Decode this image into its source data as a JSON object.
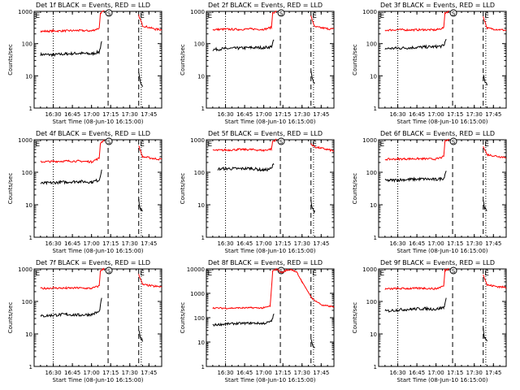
{
  "figure": {
    "ylabel": "Counts/sec",
    "xlabel": "Start Time (08-Jun-10 16:15:00)",
    "x_tick_labels": [
      "16:30",
      "16:45",
      "17:00",
      "17:15",
      "17:30",
      "17:45"
    ],
    "markers": {
      "eclipse_start": "E",
      "saa": "S"
    },
    "colors": {
      "events": "#000000",
      "lld": "#ff0000"
    }
  },
  "chart_data": [
    {
      "type": "line",
      "title": "Det 1f BLACK = Events, RED = LLD",
      "xlabel": "Start Time (08-Jun-10 16:15:00)",
      "ylabel": "Counts/sec",
      "yscale": "log",
      "xlim": [
        "16:15",
        "17:55"
      ],
      "ylim": [
        1,
        1000
      ],
      "y_tick_labels": [
        "1",
        "10",
        "100",
        "1000"
      ],
      "vlines": {
        "dotted": [
          "16:30",
          "17:39"
        ],
        "dashed": [
          "17:13",
          "17:37"
        ]
      },
      "series": [
        {
          "name": "BLACK = Events",
          "color": "#000000",
          "x": [
            "16:20",
            "16:30",
            "16:40",
            "16:50",
            "17:00",
            "17:06",
            "17:08",
            "17:37",
            "17:38",
            "17:40"
          ],
          "y": [
            46,
            45,
            48,
            50,
            48,
            55,
            110,
            12,
            7,
            5
          ]
        },
        {
          "name": "RED = LLD",
          "color": "#ff0000",
          "x": [
            "16:20",
            "16:30",
            "16:40",
            "16:50",
            "17:00",
            "17:06",
            "17:07",
            "17:10",
            "17:37",
            "17:40",
            "17:50",
            "17:55"
          ],
          "y": [
            240,
            245,
            250,
            255,
            248,
            300,
            900,
            1000,
            750,
            360,
            280,
            270
          ]
        }
      ]
    },
    {
      "type": "line",
      "title": "Det 2f BLACK = Events, RED = LLD",
      "xlabel": "Start Time (08-Jun-10 16:15:00)",
      "ylabel": "Counts/sec",
      "yscale": "log",
      "xlim": [
        "16:15",
        "17:55"
      ],
      "ylim": [
        1,
        1000
      ],
      "y_tick_labels": [
        "1",
        "10",
        "100",
        "1000"
      ],
      "vlines": {
        "dotted": [
          "16:30",
          "17:39"
        ],
        "dashed": [
          "17:13",
          "17:37"
        ]
      },
      "series": [
        {
          "name": "BLACK = Events",
          "color": "#000000",
          "x": [
            "16:20",
            "16:30",
            "16:40",
            "16:50",
            "17:00",
            "17:06",
            "17:08",
            "17:37",
            "17:38",
            "17:40"
          ],
          "y": [
            65,
            70,
            72,
            75,
            75,
            80,
            130,
            14,
            8,
            6
          ]
        },
        {
          "name": "RED = LLD",
          "color": "#ff0000",
          "x": [
            "16:20",
            "16:30",
            "16:40",
            "16:50",
            "17:00",
            "17:06",
            "17:07",
            "17:10",
            "17:37",
            "17:40",
            "17:50",
            "17:55"
          ],
          "y": [
            270,
            280,
            275,
            285,
            275,
            320,
            900,
            1000,
            700,
            330,
            290,
            280
          ]
        }
      ]
    },
    {
      "type": "line",
      "title": "Det 3f BLACK = Events, RED = LLD",
      "xlabel": "Start Time (08-Jun-10 16:15:00)",
      "ylabel": "Counts/sec",
      "yscale": "log",
      "xlim": [
        "16:15",
        "17:55"
      ],
      "ylim": [
        1,
        1000
      ],
      "y_tick_labels": [
        "1",
        "10",
        "100",
        "1000"
      ],
      "vlines": {
        "dotted": [
          "16:30",
          "17:39"
        ],
        "dashed": [
          "17:13",
          "17:37"
        ]
      },
      "series": [
        {
          "name": "BLACK = Events",
          "color": "#000000",
          "x": [
            "16:20",
            "16:30",
            "16:40",
            "16:50",
            "17:00",
            "17:06",
            "17:08",
            "17:37",
            "17:38",
            "17:40"
          ],
          "y": [
            70,
            72,
            75,
            78,
            80,
            85,
            140,
            12,
            7,
            5
          ]
        },
        {
          "name": "RED = LLD",
          "color": "#ff0000",
          "x": [
            "16:20",
            "16:30",
            "16:40",
            "16:50",
            "17:00",
            "17:06",
            "17:07",
            "17:10",
            "17:37",
            "17:40",
            "17:50",
            "17:55"
          ],
          "y": [
            260,
            270,
            265,
            270,
            265,
            310,
            900,
            1000,
            700,
            300,
            270,
            260
          ]
        }
      ]
    },
    {
      "type": "line",
      "title": "Det 4f BLACK = Events, RED = LLD",
      "xlabel": "Start Time (08-Jun-10 16:15:00)",
      "ylabel": "Counts/sec",
      "yscale": "log",
      "xlim": [
        "16:15",
        "17:55"
      ],
      "ylim": [
        1,
        1000
      ],
      "y_tick_labels": [
        "1",
        "10",
        "100",
        "1000"
      ],
      "vlines": {
        "dotted": [
          "16:30",
          "17:39"
        ],
        "dashed": [
          "17:13",
          "17:37"
        ]
      },
      "series": [
        {
          "name": "BLACK = Events",
          "color": "#000000",
          "x": [
            "16:20",
            "16:30",
            "16:40",
            "16:50",
            "17:00",
            "17:06",
            "17:08",
            "17:37",
            "17:38",
            "17:40"
          ],
          "y": [
            45,
            48,
            50,
            52,
            50,
            58,
            120,
            14,
            8,
            6
          ]
        },
        {
          "name": "RED = LLD",
          "color": "#ff0000",
          "x": [
            "16:20",
            "16:30",
            "16:40",
            "16:50",
            "17:00",
            "17:06",
            "17:07",
            "17:10",
            "17:37",
            "17:40",
            "17:50",
            "17:55"
          ],
          "y": [
            210,
            215,
            220,
            220,
            210,
            270,
            800,
            1000,
            650,
            300,
            260,
            250
          ]
        }
      ]
    },
    {
      "type": "line",
      "title": "Det 5f BLACK = Events, RED = LLD",
      "xlabel": "Start Time (08-Jun-10 16:15:00)",
      "ylabel": "Counts/sec",
      "yscale": "log",
      "xlim": [
        "16:15",
        "17:55"
      ],
      "ylim": [
        1,
        1000
      ],
      "y_tick_labels": [
        "1",
        "10",
        "100",
        "1000"
      ],
      "vlines": {
        "dotted": [
          "16:30",
          "17:39"
        ],
        "dashed": [
          "17:13",
          "17:37"
        ]
      },
      "series": [
        {
          "name": "BLACK = Events",
          "color": "#000000",
          "x": [
            "16:24",
            "16:30",
            "16:40",
            "16:50",
            "17:00",
            "17:06",
            "17:08",
            "17:37",
            "17:38",
            "17:40"
          ],
          "y": [
            125,
            130,
            128,
            132,
            115,
            130,
            190,
            14,
            8,
            6
          ]
        },
        {
          "name": "RED = LLD",
          "color": "#ff0000",
          "x": [
            "16:20",
            "16:30",
            "16:40",
            "16:50",
            "17:00",
            "17:06",
            "17:07",
            "17:10",
            "17:37",
            "17:40",
            "17:50",
            "17:55"
          ],
          "y": [
            470,
            480,
            500,
            500,
            470,
            520,
            900,
            1000,
            750,
            600,
            500,
            450
          ]
        }
      ]
    },
    {
      "type": "line",
      "title": "Det 6f BLACK = Events, RED = LLD",
      "xlabel": "Start Time (08-Jun-10 16:15:00)",
      "ylabel": "Counts/sec",
      "yscale": "log",
      "xlim": [
        "16:15",
        "17:55"
      ],
      "ylim": [
        1,
        1000
      ],
      "y_tick_labels": [
        "1",
        "10",
        "100",
        "1000"
      ],
      "vlines": {
        "dotted": [
          "16:30",
          "17:39"
        ],
        "dashed": [
          "17:13",
          "17:37"
        ]
      },
      "series": [
        {
          "name": "BLACK = Events",
          "color": "#000000",
          "x": [
            "16:20",
            "16:30",
            "16:40",
            "16:50",
            "17:00",
            "17:06",
            "17:08",
            "17:37",
            "17:38",
            "17:40"
          ],
          "y": [
            55,
            58,
            60,
            62,
            60,
            65,
            115,
            14,
            8,
            6
          ]
        },
        {
          "name": "RED = LLD",
          "color": "#ff0000",
          "x": [
            "16:20",
            "16:30",
            "16:40",
            "16:50",
            "17:00",
            "17:06",
            "17:07",
            "17:10",
            "17:37",
            "17:40",
            "17:50",
            "17:55"
          ],
          "y": [
            250,
            255,
            260,
            260,
            255,
            300,
            900,
            1000,
            650,
            350,
            300,
            290
          ]
        }
      ]
    },
    {
      "type": "line",
      "title": "Det 7f BLACK = Events, RED = LLD",
      "xlabel": "Start Time (08-Jun-10 16:15:00)",
      "ylabel": "Counts/sec",
      "yscale": "log",
      "xlim": [
        "16:15",
        "17:55"
      ],
      "ylim": [
        1,
        1000
      ],
      "y_tick_labels": [
        "1",
        "10",
        "100",
        "1000"
      ],
      "vlines": {
        "dotted": [
          "16:30",
          "17:39"
        ],
        "dashed": [
          "17:13",
          "17:37"
        ]
      },
      "series": [
        {
          "name": "BLACK = Events",
          "color": "#000000",
          "x": [
            "16:20",
            "16:30",
            "16:40",
            "16:50",
            "17:00",
            "17:06",
            "17:08",
            "17:37",
            "17:38",
            "17:40"
          ],
          "y": [
            35,
            38,
            40,
            38,
            40,
            48,
            120,
            14,
            8,
            6
          ]
        },
        {
          "name": "RED = LLD",
          "color": "#ff0000",
          "x": [
            "16:20",
            "16:30",
            "16:40",
            "16:50",
            "17:00",
            "17:06",
            "17:07",
            "17:10",
            "17:37",
            "17:40",
            "17:50",
            "17:55"
          ],
          "y": [
            250,
            260,
            255,
            260,
            250,
            300,
            900,
            1000,
            700,
            330,
            290,
            280
          ]
        }
      ]
    },
    {
      "type": "line",
      "title": "Det 8f BLACK = Events, RED = LLD",
      "xlabel": "Start Time (08-Jun-10 16:15:00)",
      "ylabel": "Counts/sec",
      "yscale": "log",
      "xlim": [
        "16:15",
        "17:55"
      ],
      "ylim": [
        1,
        10000
      ],
      "y_tick_labels": [
        "1",
        "10",
        "100",
        "1000",
        "10000"
      ],
      "vlines": {
        "dotted": [
          "16:30",
          "17:39"
        ],
        "dashed": [
          "17:13",
          "17:37"
        ]
      },
      "series": [
        {
          "name": "BLACK = Events",
          "color": "#000000",
          "x": [
            "16:20",
            "16:30",
            "16:40",
            "16:50",
            "17:00",
            "17:06",
            "17:08",
            "17:37",
            "17:38",
            "17:40"
          ],
          "y": [
            50,
            55,
            58,
            60,
            58,
            70,
            140,
            14,
            8,
            6
          ]
        },
        {
          "name": "RED = LLD",
          "color": "#ff0000",
          "x": [
            "16:20",
            "16:30",
            "16:40",
            "16:50",
            "17:00",
            "17:05",
            "17:07",
            "17:10",
            "17:14",
            "17:18",
            "17:22",
            "17:26",
            "17:30",
            "17:38",
            "17:46",
            "17:55"
          ],
          "y": [
            250,
            245,
            250,
            255,
            250,
            300,
            8000,
            10000,
            7000,
            9000,
            9500,
            7000,
            3000,
            600,
            320,
            280
          ]
        }
      ]
    },
    {
      "type": "line",
      "title": "Det 9f BLACK = Events, RED = LLD",
      "xlabel": "Start Time (08-Jun-10 16:15:00)",
      "ylabel": "Counts/sec",
      "yscale": "log",
      "xlim": [
        "16:15",
        "17:55"
      ],
      "ylim": [
        1,
        1000
      ],
      "y_tick_labels": [
        "1",
        "10",
        "100",
        "1000"
      ],
      "vlines": {
        "dotted": [
          "16:30",
          "17:39"
        ],
        "dashed": [
          "17:13",
          "17:37"
        ]
      },
      "series": [
        {
          "name": "BLACK = Events",
          "color": "#000000",
          "x": [
            "16:20",
            "16:30",
            "16:40",
            "16:50",
            "17:00",
            "17:06",
            "17:08",
            "17:37",
            "17:38",
            "17:40"
          ],
          "y": [
            50,
            55,
            58,
            60,
            58,
            65,
            120,
            14,
            8,
            6
          ]
        },
        {
          "name": "RED = LLD",
          "color": "#ff0000",
          "x": [
            "16:20",
            "16:30",
            "16:40",
            "16:50",
            "17:00",
            "17:06",
            "17:07",
            "17:10",
            "17:37",
            "17:40",
            "17:50",
            "17:55"
          ],
          "y": [
            240,
            250,
            250,
            255,
            245,
            300,
            900,
            1000,
            700,
            320,
            280,
            270
          ]
        }
      ]
    }
  ]
}
